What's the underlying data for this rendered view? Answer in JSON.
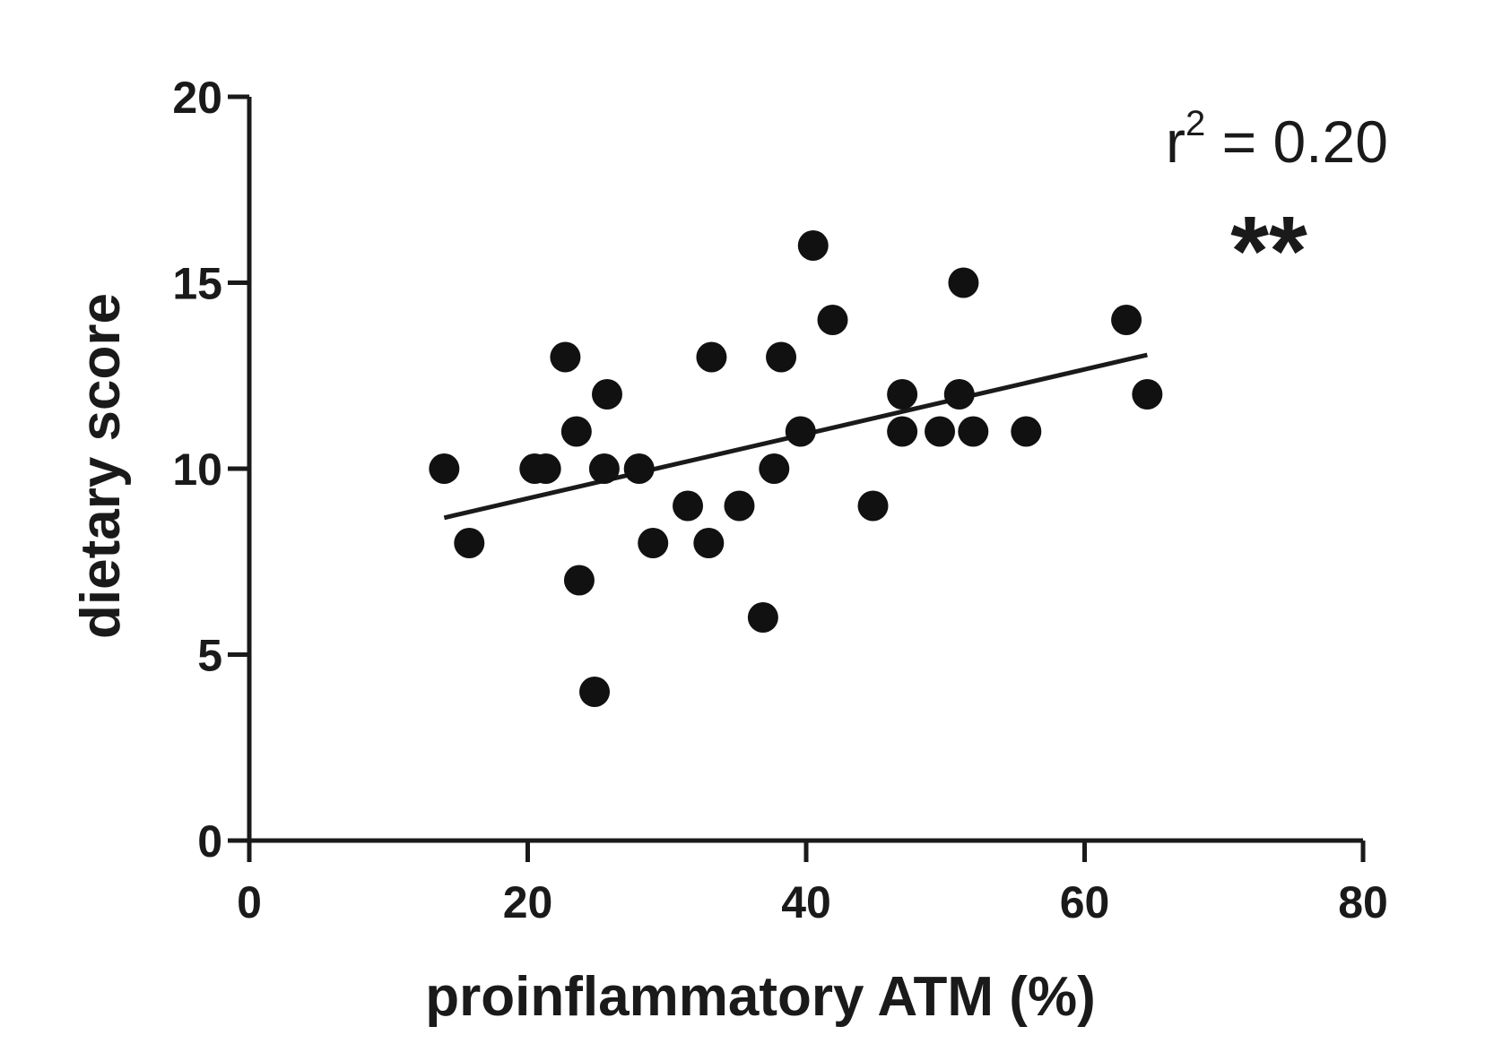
{
  "chart_data": {
    "type": "scatter",
    "xlabel": "proinflammatory ATM (%)",
    "ylabel": "dietary score",
    "xlim": [
      0,
      80
    ],
    "ylim": [
      0,
      20
    ],
    "x_ticks": [
      0,
      20,
      40,
      60,
      80
    ],
    "y_ticks": [
      0,
      5,
      10,
      15,
      20
    ],
    "grid": false,
    "annotation_r2_prefix": "r",
    "annotation_r2_exponent": "2",
    "annotation_r2_value": " = 0.20",
    "significance": "**",
    "points": [
      {
        "x": 14,
        "y": 10
      },
      {
        "x": 15.8,
        "y": 8
      },
      {
        "x": 20.5,
        "y": 10
      },
      {
        "x": 21.3,
        "y": 10
      },
      {
        "x": 22.7,
        "y": 13
      },
      {
        "x": 23.5,
        "y": 11
      },
      {
        "x": 23.7,
        "y": 7
      },
      {
        "x": 24.8,
        "y": 4
      },
      {
        "x": 25.7,
        "y": 12
      },
      {
        "x": 25.5,
        "y": 10
      },
      {
        "x": 28,
        "y": 10
      },
      {
        "x": 29,
        "y": 8
      },
      {
        "x": 31.5,
        "y": 9
      },
      {
        "x": 33,
        "y": 8
      },
      {
        "x": 33.2,
        "y": 13
      },
      {
        "x": 35.2,
        "y": 9
      },
      {
        "x": 36.9,
        "y": 6
      },
      {
        "x": 37.7,
        "y": 10
      },
      {
        "x": 38.2,
        "y": 13
      },
      {
        "x": 39.6,
        "y": 11
      },
      {
        "x": 40.5,
        "y": 16
      },
      {
        "x": 41.9,
        "y": 14
      },
      {
        "x": 44.8,
        "y": 9
      },
      {
        "x": 46.9,
        "y": 12
      },
      {
        "x": 46.9,
        "y": 11
      },
      {
        "x": 49.6,
        "y": 11
      },
      {
        "x": 51,
        "y": 12
      },
      {
        "x": 51.3,
        "y": 15
      },
      {
        "x": 52,
        "y": 11
      },
      {
        "x": 55.8,
        "y": 11
      },
      {
        "x": 63,
        "y": 14
      },
      {
        "x": 64.5,
        "y": 12
      }
    ],
    "regression": {
      "x_start": 14,
      "y_start": 8.68,
      "x_end": 64.5,
      "y_end": 13.06
    }
  }
}
